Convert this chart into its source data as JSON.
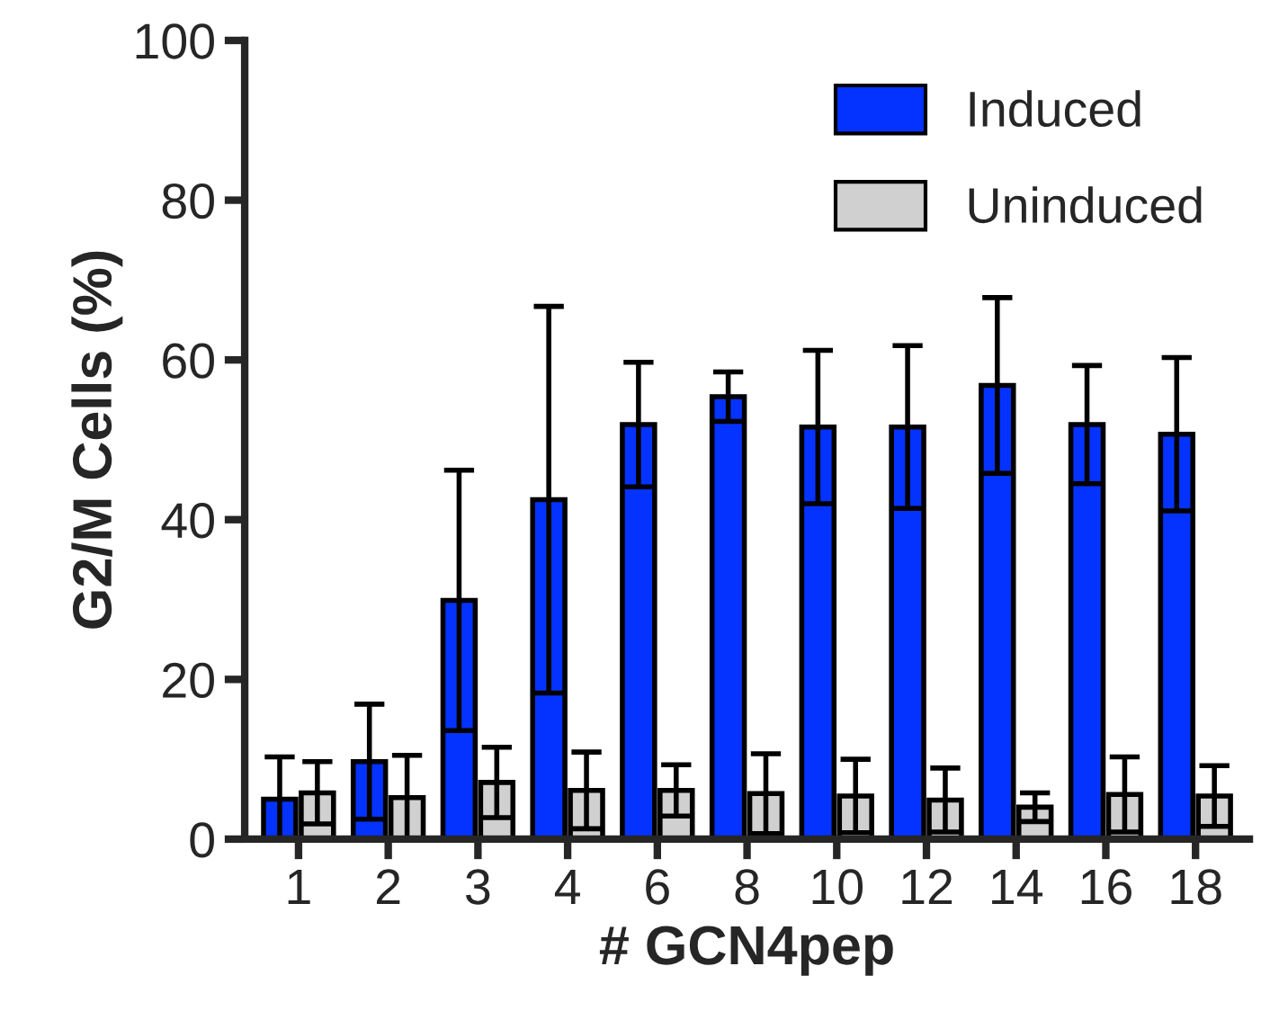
{
  "chart_data": {
    "type": "bar",
    "xlabel": "# GCN4pep",
    "ylabel": "G2/M Cells (%)",
    "categories": [
      "1",
      "2",
      "3",
      "4",
      "6",
      "8",
      "10",
      "12",
      "14",
      "16",
      "18"
    ],
    "series": [
      {
        "name": "Induced",
        "color": "#0433ff",
        "values": [
          5.0,
          9.7,
          29.9,
          42.5,
          51.9,
          55.4,
          51.6,
          51.6,
          56.8,
          51.9,
          50.7
        ],
        "errors": [
          5.3,
          7.2,
          16.3,
          24.2,
          7.8,
          3.1,
          9.6,
          10.2,
          11.0,
          7.4,
          9.6
        ]
      },
      {
        "name": "Uninduced",
        "color": "#d0d0d0",
        "values": [
          5.8,
          5.2,
          7.1,
          6.1,
          6.1,
          5.7,
          5.4,
          4.9,
          4.0,
          5.6,
          5.4
        ],
        "errors": [
          3.9,
          5.3,
          4.4,
          4.8,
          3.2,
          5.0,
          4.6,
          4.0,
          1.8,
          4.7,
          3.8
        ]
      }
    ],
    "ylim": [
      0,
      100
    ],
    "yticks": [
      0,
      20,
      40,
      60,
      80,
      100
    ],
    "grid": false,
    "legend": "top right"
  }
}
